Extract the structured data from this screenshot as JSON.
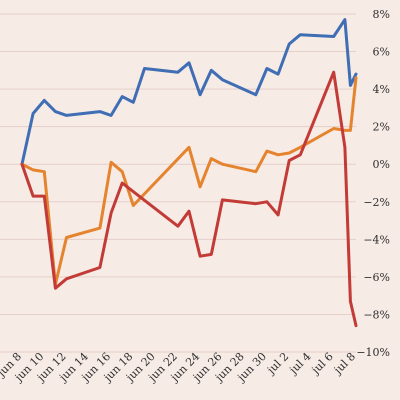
{
  "chart_data": {
    "type": "line",
    "title": "",
    "xlabel": "",
    "ylabel": "",
    "ylim": [
      -10,
      8
    ],
    "y_ticks": [
      8,
      6,
      4,
      2,
      0,
      -2,
      -4,
      -6,
      -8,
      -10
    ],
    "y_tick_labels": [
      "8%",
      "6%",
      "4%",
      "2%",
      "0%",
      "−2%",
      "−4%",
      "−6%",
      "−8%",
      "−10%"
    ],
    "y_axis_side": "right",
    "x_range": [
      "2024-06-08",
      "2024-07-08"
    ],
    "x_ticks": [
      "2024-06-08",
      "2024-06-10",
      "2024-06-12",
      "2024-06-14",
      "2024-06-16",
      "2024-06-18",
      "2024-06-20",
      "2024-06-22",
      "2024-06-24",
      "2024-06-26",
      "2024-06-28",
      "2024-06-30",
      "2024-07-02",
      "2024-07-04",
      "2024-07-06",
      "2024-07-08"
    ],
    "x_tick_labels": [
      "jun 8",
      "jun 10",
      "jun 12",
      "jun 14",
      "jun 16",
      "jun 18",
      "jun 20",
      "jun 22",
      "jun 24",
      "jun 26",
      "jun 28",
      "jun 30",
      "jul 2",
      "jul 4",
      "jul 6",
      "jul 8"
    ],
    "grid": "horizontal",
    "series": [
      {
        "color": "#3f6eb4",
        "points": [
          [
            "2024-06-08",
            0.0
          ],
          [
            "2024-06-09",
            2.7
          ],
          [
            "2024-06-10",
            3.4
          ],
          [
            "2024-06-11",
            2.8
          ],
          [
            "2024-06-12",
            2.6
          ],
          [
            "2024-06-15",
            2.8
          ],
          [
            "2024-06-16",
            2.6
          ],
          [
            "2024-06-17",
            3.6
          ],
          [
            "2024-06-18",
            3.3
          ],
          [
            "2024-06-19",
            5.1
          ],
          [
            "2024-06-22",
            4.9
          ],
          [
            "2024-06-23",
            5.4
          ],
          [
            "2024-06-24",
            3.7
          ],
          [
            "2024-06-25",
            5.0
          ],
          [
            "2024-06-26",
            4.5
          ],
          [
            "2024-06-29",
            3.7
          ],
          [
            "2024-06-30",
            5.1
          ],
          [
            "2024-07-01",
            4.8
          ],
          [
            "2024-07-02",
            6.4
          ],
          [
            "2024-07-03",
            6.9
          ],
          [
            "2024-07-06",
            6.8
          ],
          [
            "2024-07-07",
            7.7
          ],
          [
            "2024-07-07T12:00",
            4.2
          ],
          [
            "2024-07-08",
            4.8
          ]
        ]
      },
      {
        "color": "#e5842f",
        "points": [
          [
            "2024-06-08",
            0.0
          ],
          [
            "2024-06-09",
            -0.3
          ],
          [
            "2024-06-10",
            -0.4
          ],
          [
            "2024-06-11",
            -6.4
          ],
          [
            "2024-06-12",
            -3.9
          ],
          [
            "2024-06-15",
            -3.4
          ],
          [
            "2024-06-16",
            0.1
          ],
          [
            "2024-06-17",
            -0.4
          ],
          [
            "2024-06-18",
            -2.2
          ],
          [
            "2024-06-23",
            0.9
          ],
          [
            "2024-06-24",
            -1.2
          ],
          [
            "2024-06-25",
            0.3
          ],
          [
            "2024-06-26",
            0.0
          ],
          [
            "2024-06-29",
            -0.4
          ],
          [
            "2024-06-30",
            0.7
          ],
          [
            "2024-07-01",
            0.5
          ],
          [
            "2024-07-02",
            0.6
          ],
          [
            "2024-07-03",
            0.9
          ],
          [
            "2024-07-06",
            1.9
          ],
          [
            "2024-07-07",
            1.8
          ],
          [
            "2024-07-07T12:00",
            1.8
          ],
          [
            "2024-07-08",
            4.6
          ]
        ]
      },
      {
        "color": "#c23b36",
        "points": [
          [
            "2024-06-08",
            0.0
          ],
          [
            "2024-06-09",
            -1.7
          ],
          [
            "2024-06-10",
            -1.7
          ],
          [
            "2024-06-11",
            -6.6
          ],
          [
            "2024-06-12",
            -6.1
          ],
          [
            "2024-06-15",
            -5.5
          ],
          [
            "2024-06-16",
            -2.6
          ],
          [
            "2024-06-17",
            -1.0
          ],
          [
            "2024-06-22",
            -3.3
          ],
          [
            "2024-06-23",
            -2.5
          ],
          [
            "2024-06-24",
            -4.9
          ],
          [
            "2024-06-25",
            -4.8
          ],
          [
            "2024-06-26",
            -1.9
          ],
          [
            "2024-06-29",
            -2.1
          ],
          [
            "2024-06-30",
            -2.0
          ],
          [
            "2024-07-01",
            -2.7
          ],
          [
            "2024-07-02",
            0.2
          ],
          [
            "2024-07-03",
            0.5
          ],
          [
            "2024-07-06",
            4.9
          ],
          [
            "2024-07-07",
            0.9
          ],
          [
            "2024-07-07T12:00",
            -7.3
          ],
          [
            "2024-07-08",
            -8.6
          ]
        ]
      }
    ]
  }
}
